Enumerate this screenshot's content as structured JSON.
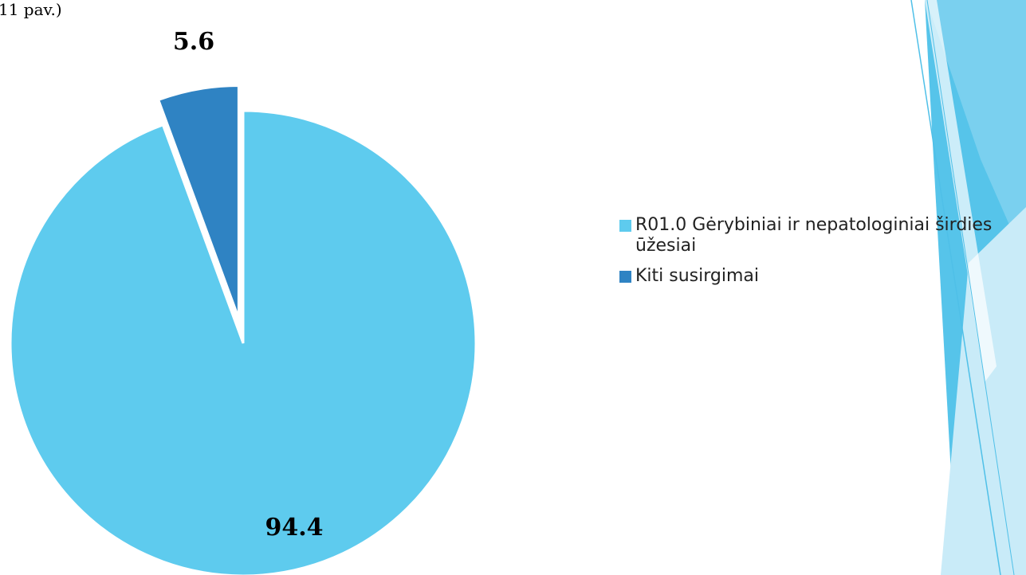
{
  "caption": "11 pav.)",
  "chart_data": {
    "type": "pie",
    "title": "",
    "slices": [
      {
        "label": "R01.0 Gėrybiniai ir nepatologiniai širdies ūžesiai",
        "value": 94.4,
        "value_label": "94.4",
        "color": "#5ecbee"
      },
      {
        "label": "Kiti susirgimai",
        "value": 5.6,
        "value_label": "5.6",
        "color": "#2f83c3"
      }
    ],
    "legend_position": "right",
    "exploded": "Kiti susirgimai"
  },
  "legend": {
    "items": [
      {
        "label": "R01.0 Gėrybiniai ir nepatologiniai širdies ūžesiai",
        "color": "#5ecbee"
      },
      {
        "label": "Kiti susirgimai",
        "color": "#2f83c3"
      }
    ]
  },
  "decor_colors": {
    "band_dark": "#56c4ea",
    "band_mid": "#7ed2ef",
    "band_light": "#c9ebf8",
    "line": "#4fc0e8"
  }
}
